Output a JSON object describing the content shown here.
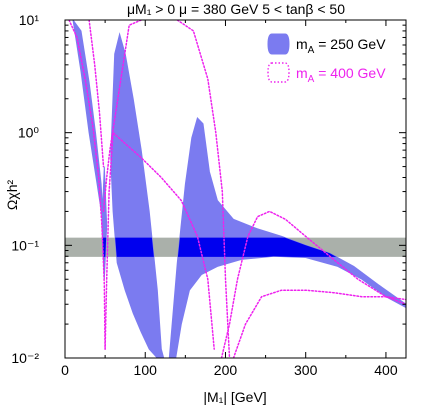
{
  "chart_data": {
    "type": "area",
    "title": "μM₁ > 0   μ = 380 GeV   5 < tanβ < 50",
    "xlabel": "|M₁| [GeV]",
    "ylabel": "Ωχh²",
    "xlim": [
      0,
      425
    ],
    "ylim": [
      0.01,
      10
    ],
    "yscale": "log",
    "x_ticks": [
      0,
      100,
      200,
      300,
      400
    ],
    "x_tick_labels": [
      "0",
      "100",
      "200",
      "300",
      "400"
    ],
    "y_ticks": [
      0.01,
      0.1,
      1,
      10
    ],
    "y_tick_labels": [
      "10⁻²",
      "10⁻¹",
      "10⁰",
      "10¹"
    ],
    "grid": false,
    "legend_position": "top-right",
    "wmap_band": {
      "y_low": 0.079,
      "y_high": 0.117,
      "color": "#aab0aa"
    },
    "series": [
      {
        "name": "m_A = 250 GeV",
        "style": "filled",
        "color": "#7b7bf0",
        "overlap_color": "#0000ee",
        "regions": [
          {
            "upper": [
              [
                5,
                10
              ],
              [
                10,
                10
              ],
              [
                20,
                3.5
              ],
              [
                30,
                1.0
              ],
              [
                40,
                0.35
              ],
              [
                48,
                0.15
              ]
            ],
            "lower": [
              [
                5,
                10
              ],
              [
                10,
                10
              ],
              [
                20,
                8
              ],
              [
                30,
                2.8
              ],
              [
                38,
                1.0
              ],
              [
                45,
                0.35
              ],
              [
                48,
                0.15
              ]
            ]
          },
          {
            "upper": [
              [
                46,
                0.15
              ],
              [
                49,
                0.5
              ],
              [
                52,
                0.15
              ]
            ],
            "lower": [
              [
                46,
                0.15
              ],
              [
                49,
                0.05
              ],
              [
                52,
                0.15
              ]
            ]
          },
          {
            "upper": [
              [
                57,
                0.6
              ],
              [
                62,
                5.0
              ],
              [
                68,
                7.5
              ],
              [
                75,
                5.0
              ],
              [
                85,
                2.0
              ],
              [
                95,
                0.7
              ],
              [
                105,
                0.2
              ],
              [
                115,
                0.04
              ],
              [
                120,
                0.012
              ],
              [
                123,
                0.01
              ]
            ],
            "lower": [
              [
                57,
                0.6
              ],
              [
                60,
                0.2
              ],
              [
                65,
                0.07
              ],
              [
                75,
                0.04
              ],
              [
                85,
                0.025
              ],
              [
                95,
                0.017
              ],
              [
                105,
                0.012
              ],
              [
                115,
                0.01
              ],
              [
                123,
                0.01
              ]
            ]
          },
          {
            "upper": [
              [
                130,
                0.01
              ],
              [
                140,
                0.07
              ],
              [
                150,
                0.35
              ],
              [
                158,
                0.9
              ],
              [
                165,
                1.35
              ],
              [
                172,
                1.2
              ],
              [
                180,
                0.45
              ],
              [
                190,
                0.25
              ],
              [
                210,
                0.17
              ],
              [
                240,
                0.14
              ],
              [
                270,
                0.12
              ],
              [
                300,
                0.1
              ],
              [
                330,
                0.085
              ],
              [
                360,
                0.065
              ],
              [
                390,
                0.045
              ],
              [
                425,
                0.03
              ]
            ],
            "lower": [
              [
                130,
                0.01
              ],
              [
                138,
                0.01
              ],
              [
                145,
                0.02
              ],
              [
                155,
                0.04
              ],
              [
                170,
                0.055
              ],
              [
                190,
                0.065
              ],
              [
                220,
                0.075
              ],
              [
                260,
                0.08
              ],
              [
                300,
                0.078
              ],
              [
                340,
                0.065
              ],
              [
                370,
                0.05
              ],
              [
                400,
                0.035
              ],
              [
                425,
                0.028
              ]
            ]
          }
        ]
      },
      {
        "name": "m_A = 400 GeV",
        "style": "dotted",
        "color": "#ee22ee",
        "curves": [
          [
            [
              5,
              10
            ],
            [
              15,
              7
            ],
            [
              25,
              3
            ],
            [
              35,
              1.1
            ],
            [
              42,
              0.4
            ],
            [
              46,
              0.15
            ],
            [
              49,
              0.045
            ],
            [
              50,
              0.012
            ]
          ],
          [
            [
              50,
              0.012
            ],
            [
              52,
              0.05
            ],
            [
              55,
              0.3
            ],
            [
              60,
              1.0
            ],
            [
              75,
              0.8
            ],
            [
              95,
              0.6
            ],
            [
              120,
              0.4
            ],
            [
              145,
              0.25
            ],
            [
              165,
              0.12
            ],
            [
              178,
              0.05
            ],
            [
              186,
              0.012
            ]
          ],
          [
            [
              30,
              10
            ],
            [
              37,
              4
            ],
            [
              43,
              1.5
            ],
            [
              48,
              0.5
            ]
          ],
          [
            [
              48,
              0.2
            ],
            [
              52,
              0.4
            ],
            [
              56,
              0.7
            ],
            [
              80,
              9
            ],
            [
              95,
              10
            ]
          ],
          [
            [
              140,
              10
            ],
            [
              160,
              8
            ],
            [
              178,
              3
            ],
            [
              188,
              1.0
            ],
            [
              196,
              0.3
            ],
            [
              200,
              0.05
            ],
            [
              205,
              0.01
            ]
          ],
          [
            [
              195,
              0.01
            ],
            [
              205,
              0.02
            ],
            [
              215,
              0.05
            ],
            [
              228,
              0.12
            ],
            [
              240,
              0.18
            ],
            [
              255,
              0.2
            ],
            [
              275,
              0.17
            ],
            [
              300,
              0.12
            ],
            [
              330,
              0.08
            ],
            [
              365,
              0.05
            ],
            [
              400,
              0.035
            ],
            [
              425,
              0.03
            ]
          ],
          [
            [
              210,
              0.01
            ],
            [
              225,
              0.02
            ],
            [
              245,
              0.035
            ],
            [
              270,
              0.04
            ],
            [
              300,
              0.04
            ],
            [
              335,
              0.038
            ],
            [
              370,
              0.035
            ],
            [
              400,
              0.035
            ],
            [
              425,
              0.033
            ]
          ]
        ]
      }
    ]
  }
}
